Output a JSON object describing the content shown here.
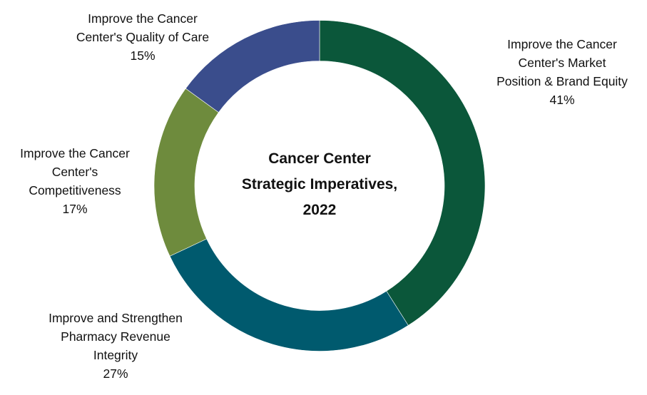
{
  "chart_data": {
    "type": "pie",
    "subtype": "donut",
    "title": "Cancer Center Strategic Imperatives, 2022",
    "title_lines": [
      "Cancer Center",
      "Strategic Imperatives,",
      "2022"
    ],
    "categories": [
      "Improve the Cancer Center's Market Position & Brand Equity",
      "Improve and Strengthen Pharmacy Revenue Integrity",
      "Improve the Cancer Center's Competitiveness",
      "Improve the Cancer Center's Quality of Care"
    ],
    "values": [
      41,
      27,
      17,
      15
    ],
    "unit": "%",
    "colors": [
      "#0B573A",
      "#005A6E",
      "#6E8B3D",
      "#3A4D8C"
    ],
    "start_angle_deg": 0,
    "direction": "clockwise",
    "legend": "none (data labels outside ring)"
  },
  "labels": [
    {
      "lines": [
        "Improve the Cancer",
        "Center's Market",
        "Position & Brand Equity"
      ],
      "pct": "41%"
    },
    {
      "lines": [
        "Improve and Strengthen",
        "Pharmacy Revenue",
        "Integrity"
      ],
      "pct": "27%"
    },
    {
      "lines": [
        "Improve the Cancer",
        "Center's",
        "Competitiveness"
      ],
      "pct": "17%"
    },
    {
      "lines": [
        "Improve the Cancer",
        "Center's Quality of Care"
      ],
      "pct": "15%"
    }
  ]
}
